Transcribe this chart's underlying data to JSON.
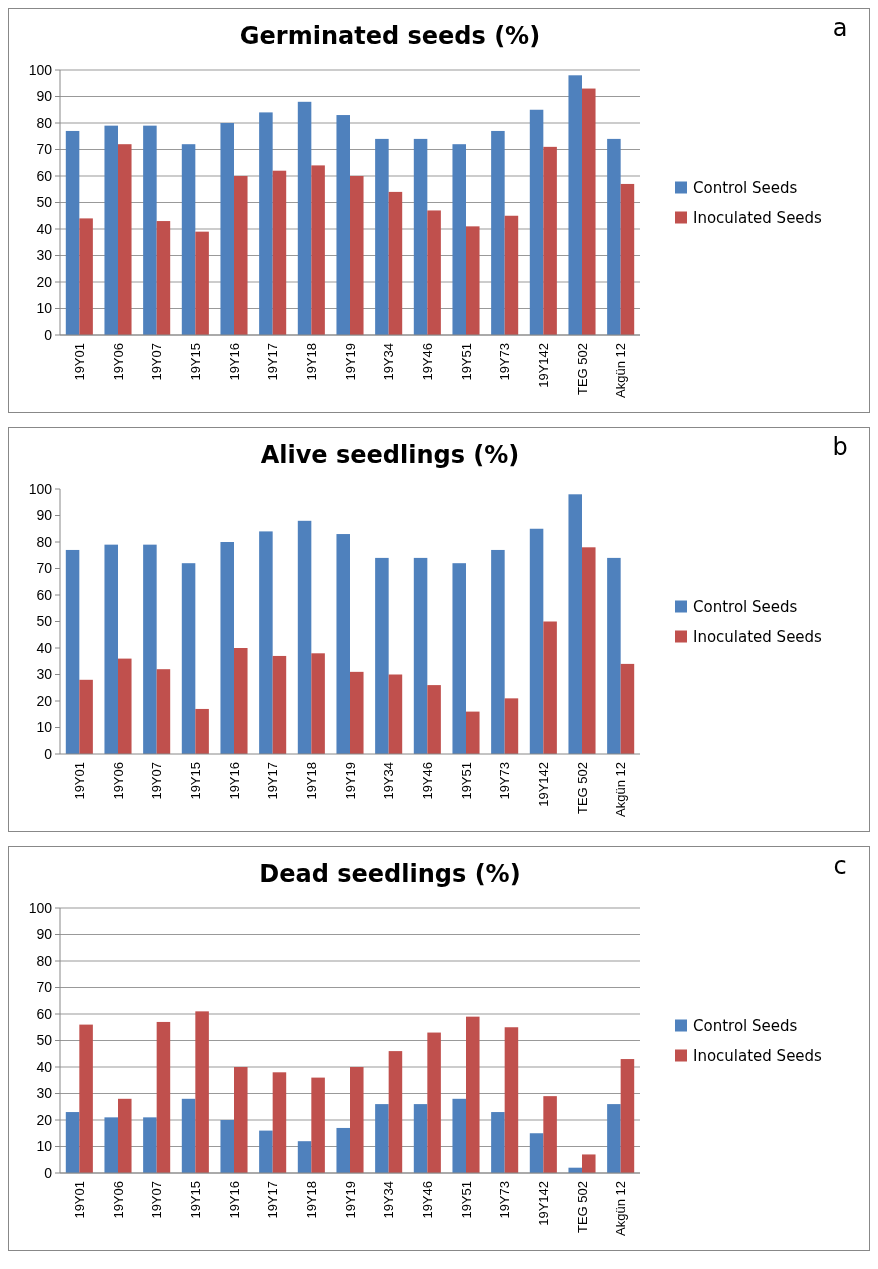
{
  "chart_data": [
    {
      "type": "bar",
      "title": "Germinated seeds (%)",
      "annotations": [
        "a"
      ],
      "categories": [
        "19Y01",
        "19Y06",
        "19Y07",
        "19Y15",
        "19Y16",
        "19Y17",
        "19Y18",
        "19Y19",
        "19Y34",
        "19Y46",
        "19Y51",
        "19Y73",
        "19Y142",
        "TEG 502",
        "Akgün 12"
      ],
      "series": [
        {
          "name": "Control Seeds",
          "color": "#4f81bd",
          "values": [
            77,
            79,
            79,
            72,
            80,
            84,
            88,
            83,
            74,
            74,
            72,
            77,
            85,
            98,
            74
          ]
        },
        {
          "name": "Inoculated Seeds",
          "color": "#c0504d",
          "values": [
            44,
            72,
            43,
            39,
            60,
            62,
            64,
            60,
            54,
            47,
            41,
            45,
            71,
            93,
            57
          ]
        }
      ],
      "ylim": [
        0,
        100
      ],
      "yticks": [
        0,
        10,
        20,
        30,
        40,
        50,
        60,
        70,
        80,
        90,
        100
      ],
      "grid": "y",
      "legend": "right"
    },
    {
      "type": "bar",
      "title": "Alive seedlings (%)",
      "annotations": [
        "b"
      ],
      "categories": [
        "19Y01",
        "19Y06",
        "19Y07",
        "19Y15",
        "19Y16",
        "19Y17",
        "19Y18",
        "19Y19",
        "19Y34",
        "19Y46",
        "19Y51",
        "19Y73",
        "19Y142",
        "TEG 502",
        "Akgün 12"
      ],
      "series": [
        {
          "name": "Control Seeds",
          "color": "#4f81bd",
          "values": [
            77,
            79,
            79,
            72,
            80,
            84,
            88,
            83,
            74,
            74,
            72,
            77,
            85,
            98,
            74
          ]
        },
        {
          "name": "Inoculated Seeds",
          "color": "#c0504d",
          "values": [
            28,
            36,
            32,
            17,
            40,
            37,
            38,
            31,
            30,
            26,
            16,
            21,
            50,
            78,
            34
          ]
        }
      ],
      "ylim": [
        0,
        100
      ],
      "yticks": [
        0,
        10,
        20,
        30,
        40,
        50,
        60,
        70,
        80,
        90,
        100
      ],
      "grid": false,
      "legend": "right"
    },
    {
      "type": "bar",
      "title": "Dead seedlings (%)",
      "annotations": [
        "c"
      ],
      "categories": [
        "19Y01",
        "19Y06",
        "19Y07",
        "19Y15",
        "19Y16",
        "19Y17",
        "19Y18",
        "19Y19",
        "19Y34",
        "19Y46",
        "19Y51",
        "19Y73",
        "19Y142",
        "TEG 502",
        "Akgün 12"
      ],
      "series": [
        {
          "name": "Control Seeds",
          "color": "#4f81bd",
          "values": [
            23,
            21,
            21,
            28,
            20,
            16,
            12,
            17,
            26,
            26,
            28,
            23,
            15,
            2,
            26
          ]
        },
        {
          "name": "Inoculated Seeds",
          "color": "#c0504d",
          "values": [
            56,
            28,
            57,
            61,
            40,
            38,
            36,
            40,
            46,
            53,
            59,
            55,
            29,
            7,
            43
          ]
        }
      ],
      "ylim": [
        0,
        100
      ],
      "yticks": [
        0,
        10,
        20,
        30,
        40,
        50,
        60,
        70,
        80,
        90,
        100
      ],
      "grid": "y",
      "legend": "right"
    }
  ]
}
